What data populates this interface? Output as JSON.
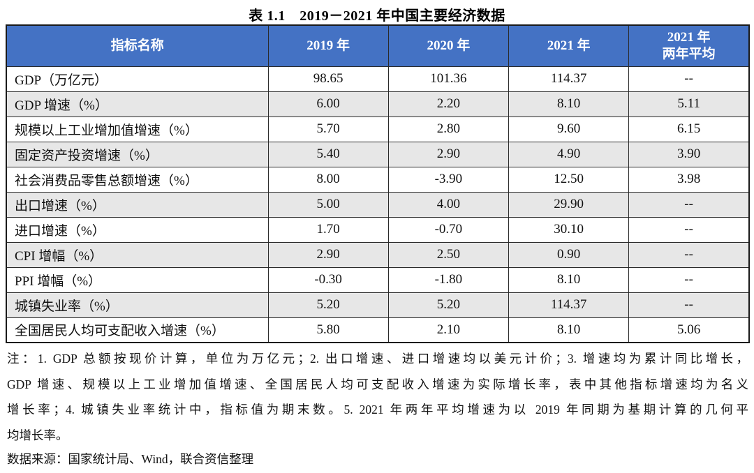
{
  "title": "表 1.1　2019－2021 年中国主要经济数据",
  "table": {
    "headers": [
      "指标名称",
      "2019 年",
      "2020 年",
      "2021 年",
      "2021 年\n两年平均"
    ],
    "rows": [
      {
        "label": "GDP（万亿元）",
        "values": [
          "98.65",
          "101.36",
          "114.37",
          "--"
        ]
      },
      {
        "label": "GDP 增速（%）",
        "values": [
          "6.00",
          "2.20",
          "8.10",
          "5.11"
        ]
      },
      {
        "label": "规模以上工业增加值增速（%）",
        "values": [
          "5.70",
          "2.80",
          "9.60",
          "6.15"
        ]
      },
      {
        "label": "固定资产投资增速（%）",
        "values": [
          "5.40",
          "2.90",
          "4.90",
          "3.90"
        ]
      },
      {
        "label": "社会消费品零售总额增速（%）",
        "values": [
          "8.00",
          "-3.90",
          "12.50",
          "3.98"
        ]
      },
      {
        "label": "出口增速（%）",
        "values": [
          "5.00",
          "4.00",
          "29.90",
          "--"
        ]
      },
      {
        "label": "进口增速（%）",
        "values": [
          "1.70",
          "-0.70",
          "30.10",
          "--"
        ]
      },
      {
        "label": "CPI 增幅（%）",
        "values": [
          "2.90",
          "2.50",
          "0.90",
          "--"
        ]
      },
      {
        "label": "PPI 增幅（%）",
        "values": [
          "-0.30",
          "-1.80",
          "8.10",
          "--"
        ]
      },
      {
        "label": "城镇失业率（%）",
        "values": [
          "5.20",
          "5.20",
          "114.37",
          "--"
        ]
      },
      {
        "label": "全国居民人均可支配收入增速（%）",
        "values": [
          "5.80",
          "2.10",
          "8.10",
          "5.06"
        ]
      }
    ]
  },
  "notes": {
    "lines": [
      "注：1. GDP 总额按现价计算，单位为万亿元；2. 出口增速、进口增速均以美元计价；3. 增速均为累计同比增长，",
      "GDP 增速、规模以上工业增加值增速、全国居民人均可支配收入增速为实际增长率，表中其他指标增速均为名义",
      "增长率；4. 城镇失业率统计中，指标值为期末数。5. 2021 年两年平均增速为以 2019 年同期为基期计算的几何平",
      "均增长率。"
    ],
    "source": "数据来源：国家统计局、Wind，联合资信整理"
  },
  "colors": {
    "header_bg": "#4472C4",
    "header_text": "#FFFFFF",
    "alt_row_bg": "#E7E7E7",
    "border": "#2A2A2A"
  }
}
